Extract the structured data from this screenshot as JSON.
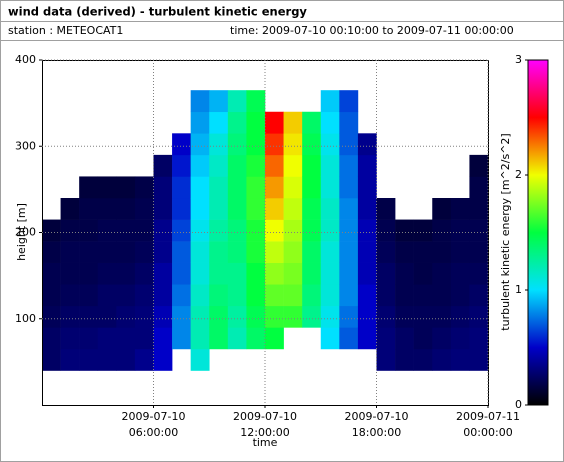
{
  "header": {
    "title": "wind data (derived) - turbulent kinetic energy",
    "station": "station : METEOCAT1",
    "time": "time: 2009-07-10 00:10:00 to 2009-07-11 00:00:00"
  },
  "chart_data": {
    "type": "heatmap",
    "xlabel": "time",
    "ylabel": "height [m]",
    "colorbar_label": "turbulent kinetic energy [m^2/s^2]",
    "xlim": [
      0,
      24
    ],
    "xticks": [
      {
        "value": 6,
        "label": [
          "2009-07-10",
          "06:00:00"
        ]
      },
      {
        "value": 12,
        "label": [
          "2009-07-10",
          "12:00:00"
        ]
      },
      {
        "value": 18,
        "label": [
          "2009-07-10",
          "18:00:00"
        ]
      },
      {
        "value": 24,
        "label": [
          "2009-07-11",
          "00:00:00"
        ]
      }
    ],
    "ylim": [
      0,
      400
    ],
    "yticks": [
      100,
      200,
      300,
      400
    ],
    "zlim": [
      0,
      3
    ],
    "zticks": [
      0,
      1,
      2,
      3
    ],
    "grid": true,
    "colorscale": [
      [
        0,
        "#000000"
      ],
      [
        0.5,
        "#0000c8"
      ],
      [
        1,
        "#00e0ff"
      ],
      [
        1.5,
        "#00ff40"
      ],
      [
        2,
        "#f0ff00"
      ],
      [
        2.5,
        "#ff0000"
      ],
      [
        3,
        "#ff00ff"
      ]
    ],
    "x_edges": [
      0,
      1,
      2,
      3,
      4,
      5,
      6,
      7,
      8,
      9,
      10,
      11,
      12,
      13,
      14,
      15,
      16,
      17,
      18,
      19,
      20,
      21,
      22,
      23,
      24
    ],
    "y_edges": [
      40,
      65,
      90,
      115,
      140,
      165,
      190,
      215,
      240,
      265,
      290,
      315,
      340,
      365
    ],
    "z": [
      [
        0.25,
        0.25,
        0.22,
        0.2,
        0.2,
        0.18,
        0.15,
        null,
        null,
        null,
        null,
        null,
        null
      ],
      [
        0.3,
        0.28,
        0.25,
        0.22,
        0.2,
        0.2,
        0.18,
        0.15,
        null,
        null,
        null,
        null,
        null
      ],
      [
        0.3,
        0.28,
        0.25,
        0.22,
        0.2,
        0.2,
        0.18,
        0.18,
        0.15,
        null,
        null,
        null,
        null
      ],
      [
        0.3,
        0.3,
        0.25,
        0.25,
        0.22,
        0.2,
        0.2,
        0.18,
        0.15,
        null,
        null,
        null,
        null
      ],
      [
        0.3,
        0.3,
        0.28,
        0.25,
        0.22,
        0.2,
        0.2,
        0.18,
        0.15,
        null,
        null,
        null,
        null
      ],
      [
        0.35,
        0.3,
        0.3,
        0.28,
        0.25,
        0.22,
        0.2,
        0.2,
        0.18,
        null,
        null,
        null,
        null
      ],
      [
        0.5,
        0.5,
        0.45,
        0.4,
        0.4,
        0.35,
        0.35,
        0.3,
        0.3,
        0.25,
        null,
        null,
        null
      ],
      [
        null,
        0.8,
        0.8,
        0.75,
        0.7,
        0.7,
        0.65,
        0.6,
        0.6,
        0.55,
        0.5,
        null,
        null
      ],
      [
        1.1,
        1.2,
        1.2,
        1.15,
        1.1,
        1.1,
        1.05,
        1.0,
        1.0,
        0.95,
        0.9,
        0.85,
        0.8
      ],
      [
        null,
        1.4,
        1.4,
        1.35,
        1.3,
        1.3,
        1.25,
        1.2,
        1.2,
        1.15,
        1.1,
        1.0,
        0.9
      ],
      [
        null,
        1.2,
        1.25,
        1.3,
        1.3,
        1.35,
        1.35,
        1.4,
        1.4,
        1.4,
        1.35,
        1.3,
        1.2
      ],
      [
        null,
        1.4,
        1.45,
        1.5,
        1.5,
        1.55,
        1.55,
        1.6,
        1.6,
        1.55,
        1.5,
        1.5,
        1.45
      ],
      [
        null,
        1.5,
        1.6,
        1.7,
        1.8,
        1.9,
        2.0,
        2.1,
        2.2,
        2.3,
        2.4,
        2.5,
        null
      ],
      [
        null,
        null,
        1.6,
        1.7,
        1.75,
        1.8,
        1.85,
        1.9,
        1.95,
        2.0,
        2.05,
        2.1,
        null
      ],
      [
        null,
        null,
        1.3,
        1.35,
        1.4,
        1.4,
        1.45,
        1.45,
        1.5,
        1.5,
        1.45,
        1.4,
        null
      ],
      [
        null,
        1.0,
        1.05,
        1.1,
        1.1,
        1.1,
        1.15,
        1.15,
        1.1,
        1.1,
        1.05,
        1.0,
        0.95
      ],
      [
        null,
        0.7,
        0.75,
        0.8,
        0.8,
        0.8,
        0.8,
        0.8,
        0.75,
        0.75,
        0.7,
        0.7,
        0.65
      ],
      [
        null,
        0.5,
        0.5,
        0.5,
        0.45,
        0.45,
        0.45,
        0.4,
        0.4,
        0.4,
        0.35,
        null,
        null
      ],
      [
        0.3,
        0.3,
        0.28,
        0.25,
        0.25,
        0.22,
        0.2,
        0.18,
        null,
        null,
        null,
        null,
        null
      ],
      [
        0.25,
        0.25,
        0.22,
        0.2,
        0.2,
        0.18,
        0.15,
        null,
        null,
        null,
        null,
        null,
        null
      ],
      [
        0.25,
        0.22,
        0.22,
        0.2,
        0.18,
        0.18,
        0.15,
        null,
        null,
        null,
        null,
        null,
        null
      ],
      [
        0.28,
        0.25,
        0.22,
        0.2,
        0.2,
        0.18,
        0.18,
        0.15,
        null,
        null,
        null,
        null,
        null
      ],
      [
        0.3,
        0.28,
        0.25,
        0.22,
        0.22,
        0.2,
        0.2,
        0.18,
        null,
        null,
        null,
        null,
        null
      ],
      [
        0.3,
        0.3,
        0.28,
        0.25,
        0.22,
        0.2,
        0.2,
        0.18,
        0.18,
        0.15,
        null,
        null,
        null
      ]
    ]
  }
}
